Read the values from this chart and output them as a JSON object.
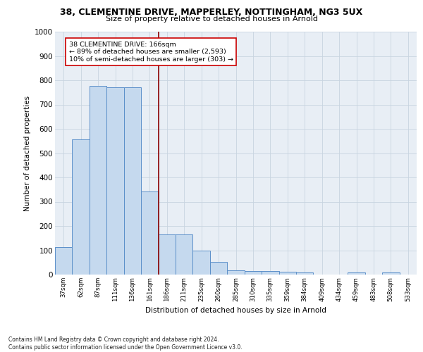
{
  "title_main": "38, CLEMENTINE DRIVE, MAPPERLEY, NOTTINGHAM, NG3 5UX",
  "title_sub": "Size of property relative to detached houses in Arnold",
  "xlabel": "Distribution of detached houses by size in Arnold",
  "ylabel": "Number of detached properties",
  "categories": [
    "37sqm",
    "62sqm",
    "87sqm",
    "111sqm",
    "136sqm",
    "161sqm",
    "186sqm",
    "211sqm",
    "235sqm",
    "260sqm",
    "285sqm",
    "310sqm",
    "335sqm",
    "359sqm",
    "384sqm",
    "409sqm",
    "434sqm",
    "459sqm",
    "483sqm",
    "508sqm",
    "533sqm"
  ],
  "values": [
    112,
    557,
    778,
    770,
    770,
    343,
    165,
    165,
    98,
    52,
    18,
    15,
    15,
    12,
    10,
    0,
    0,
    8,
    0,
    8,
    0
  ],
  "bar_color": "#c5d9ee",
  "bar_edge_color": "#5b8fc9",
  "grid_color": "#c8d4e0",
  "red_line_x": 5.5,
  "annotation_box_text": "38 CLEMENTINE DRIVE: 166sqm\n← 89% of detached houses are smaller (2,593)\n10% of semi-detached houses are larger (303) →",
  "footnote": "Contains HM Land Registry data © Crown copyright and database right 2024.\nContains public sector information licensed under the Open Government Licence v3.0.",
  "ylim": [
    0,
    1000
  ],
  "yticks": [
    0,
    100,
    200,
    300,
    400,
    500,
    600,
    700,
    800,
    900,
    1000
  ],
  "background_color": "#e8eef5",
  "fig_background": "#ffffff"
}
